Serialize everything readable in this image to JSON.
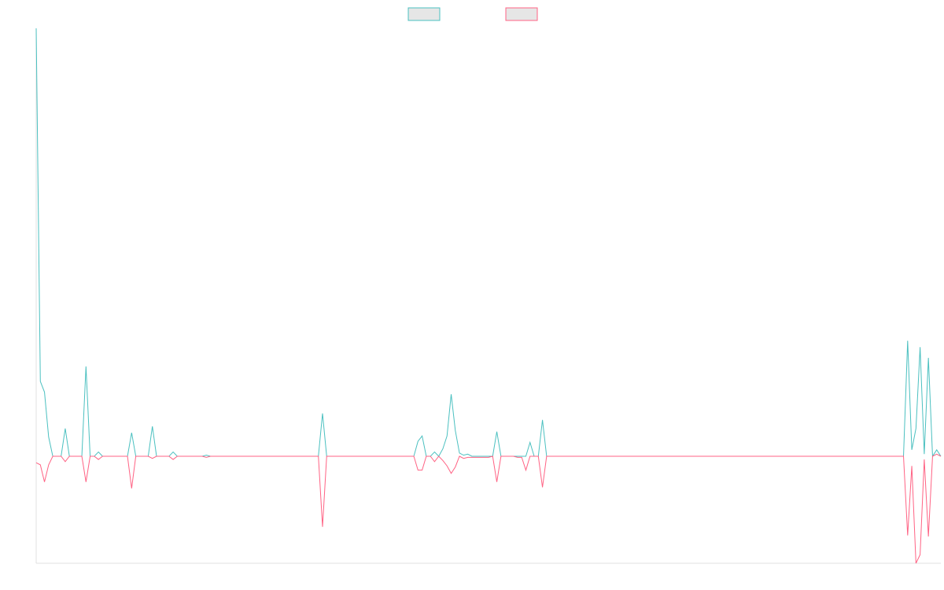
{
  "chart_data": {
    "type": "line",
    "title": "",
    "xlabel": "",
    "ylabel": "",
    "legend_position": "top-center",
    "grid": false,
    "show_tick_labels": false,
    "x_count": 218,
    "ylim": [
      -100,
      400
    ],
    "series": [
      {
        "color": "#4BC0C0",
        "fill": "#E6E6E6",
        "points": [
          [
            0,
            400
          ],
          [
            1,
            70
          ],
          [
            2,
            60
          ],
          [
            3,
            18
          ],
          [
            4,
            0
          ],
          [
            5,
            0
          ],
          [
            6,
            0
          ],
          [
            7,
            26
          ],
          [
            8,
            0
          ],
          [
            11,
            0
          ],
          [
            12,
            84
          ],
          [
            13,
            0
          ],
          [
            14,
            0
          ],
          [
            15,
            4
          ],
          [
            16,
            0
          ],
          [
            20,
            0
          ],
          [
            21,
            0
          ],
          [
            22,
            0
          ],
          [
            23,
            22
          ],
          [
            24,
            0
          ],
          [
            25,
            0
          ],
          [
            26,
            0
          ],
          [
            27,
            0
          ],
          [
            28,
            28
          ],
          [
            29,
            0
          ],
          [
            30,
            0
          ],
          [
            31,
            0
          ],
          [
            32,
            0
          ],
          [
            33,
            4
          ],
          [
            34,
            0
          ],
          [
            40,
            0
          ],
          [
            41,
            1
          ],
          [
            42,
            0
          ],
          [
            68,
            0
          ],
          [
            69,
            40
          ],
          [
            70,
            0
          ],
          [
            91,
            0
          ],
          [
            92,
            14
          ],
          [
            93,
            19
          ],
          [
            94,
            0
          ],
          [
            95,
            0
          ],
          [
            96,
            4
          ],
          [
            97,
            0
          ],
          [
            98,
            7
          ],
          [
            99,
            19
          ],
          [
            100,
            58
          ],
          [
            101,
            24
          ],
          [
            102,
            3
          ],
          [
            103,
            1
          ],
          [
            104,
            2
          ],
          [
            105,
            0
          ],
          [
            106,
            0
          ],
          [
            107,
            0
          ],
          [
            108,
            0
          ],
          [
            109,
            0
          ],
          [
            110,
            0
          ],
          [
            111,
            23
          ],
          [
            112,
            0
          ],
          [
            113,
            0
          ],
          [
            114,
            0
          ],
          [
            115,
            0
          ],
          [
            116,
            0
          ],
          [
            117,
            0
          ],
          [
            118,
            0
          ],
          [
            119,
            13
          ],
          [
            120,
            0
          ],
          [
            121,
            0
          ],
          [
            122,
            34
          ],
          [
            123,
            0
          ],
          [
            125,
            0
          ],
          [
            209,
            0
          ],
          [
            210,
            108
          ],
          [
            211,
            6
          ],
          [
            212,
            26
          ],
          [
            213,
            102
          ],
          [
            214,
            2
          ],
          [
            215,
            92
          ],
          [
            216,
            0
          ],
          [
            217,
            6
          ],
          [
            218,
            0
          ]
        ]
      },
      {
        "color": "#FF6384",
        "fill": "#E6E6E6",
        "points": [
          [
            0,
            -6
          ],
          [
            1,
            -8
          ],
          [
            2,
            -24
          ],
          [
            3,
            -8
          ],
          [
            4,
            0
          ],
          [
            5,
            0
          ],
          [
            6,
            0
          ],
          [
            7,
            -5
          ],
          [
            8,
            0
          ],
          [
            11,
            0
          ],
          [
            12,
            -24
          ],
          [
            13,
            0
          ],
          [
            14,
            0
          ],
          [
            15,
            -3
          ],
          [
            16,
            0
          ],
          [
            20,
            0
          ],
          [
            21,
            0
          ],
          [
            22,
            0
          ],
          [
            23,
            -30
          ],
          [
            24,
            0
          ],
          [
            25,
            0
          ],
          [
            26,
            0
          ],
          [
            27,
            0
          ],
          [
            28,
            -2
          ],
          [
            29,
            0
          ],
          [
            30,
            0
          ],
          [
            31,
            0
          ],
          [
            32,
            0
          ],
          [
            33,
            -3
          ],
          [
            34,
            0
          ],
          [
            40,
            0
          ],
          [
            41,
            -1
          ],
          [
            42,
            0
          ],
          [
            68,
            0
          ],
          [
            69,
            -66
          ],
          [
            70,
            0
          ],
          [
            91,
            0
          ],
          [
            92,
            -13
          ],
          [
            93,
            -13
          ],
          [
            94,
            0
          ],
          [
            95,
            0
          ],
          [
            96,
            -5
          ],
          [
            97,
            0
          ],
          [
            98,
            -4
          ],
          [
            99,
            -9
          ],
          [
            100,
            -16
          ],
          [
            101,
            -10
          ],
          [
            102,
            0
          ],
          [
            103,
            -2
          ],
          [
            104,
            -1
          ],
          [
            105,
            -1
          ],
          [
            106,
            -1
          ],
          [
            107,
            -1
          ],
          [
            108,
            -1
          ],
          [
            109,
            -1
          ],
          [
            110,
            0
          ],
          [
            111,
            -24
          ],
          [
            112,
            0
          ],
          [
            113,
            0
          ],
          [
            114,
            0
          ],
          [
            115,
            0
          ],
          [
            116,
            -1
          ],
          [
            117,
            -1
          ],
          [
            118,
            -13
          ],
          [
            119,
            0
          ],
          [
            120,
            0
          ],
          [
            121,
            0
          ],
          [
            122,
            -29
          ],
          [
            123,
            0
          ],
          [
            125,
            0
          ],
          [
            209,
            0
          ],
          [
            210,
            -74
          ],
          [
            211,
            -9
          ],
          [
            212,
            -100
          ],
          [
            213,
            -92
          ],
          [
            214,
            -3
          ],
          [
            215,
            -75
          ],
          [
            216,
            0
          ],
          [
            217,
            2
          ],
          [
            218,
            0
          ]
        ]
      }
    ]
  }
}
